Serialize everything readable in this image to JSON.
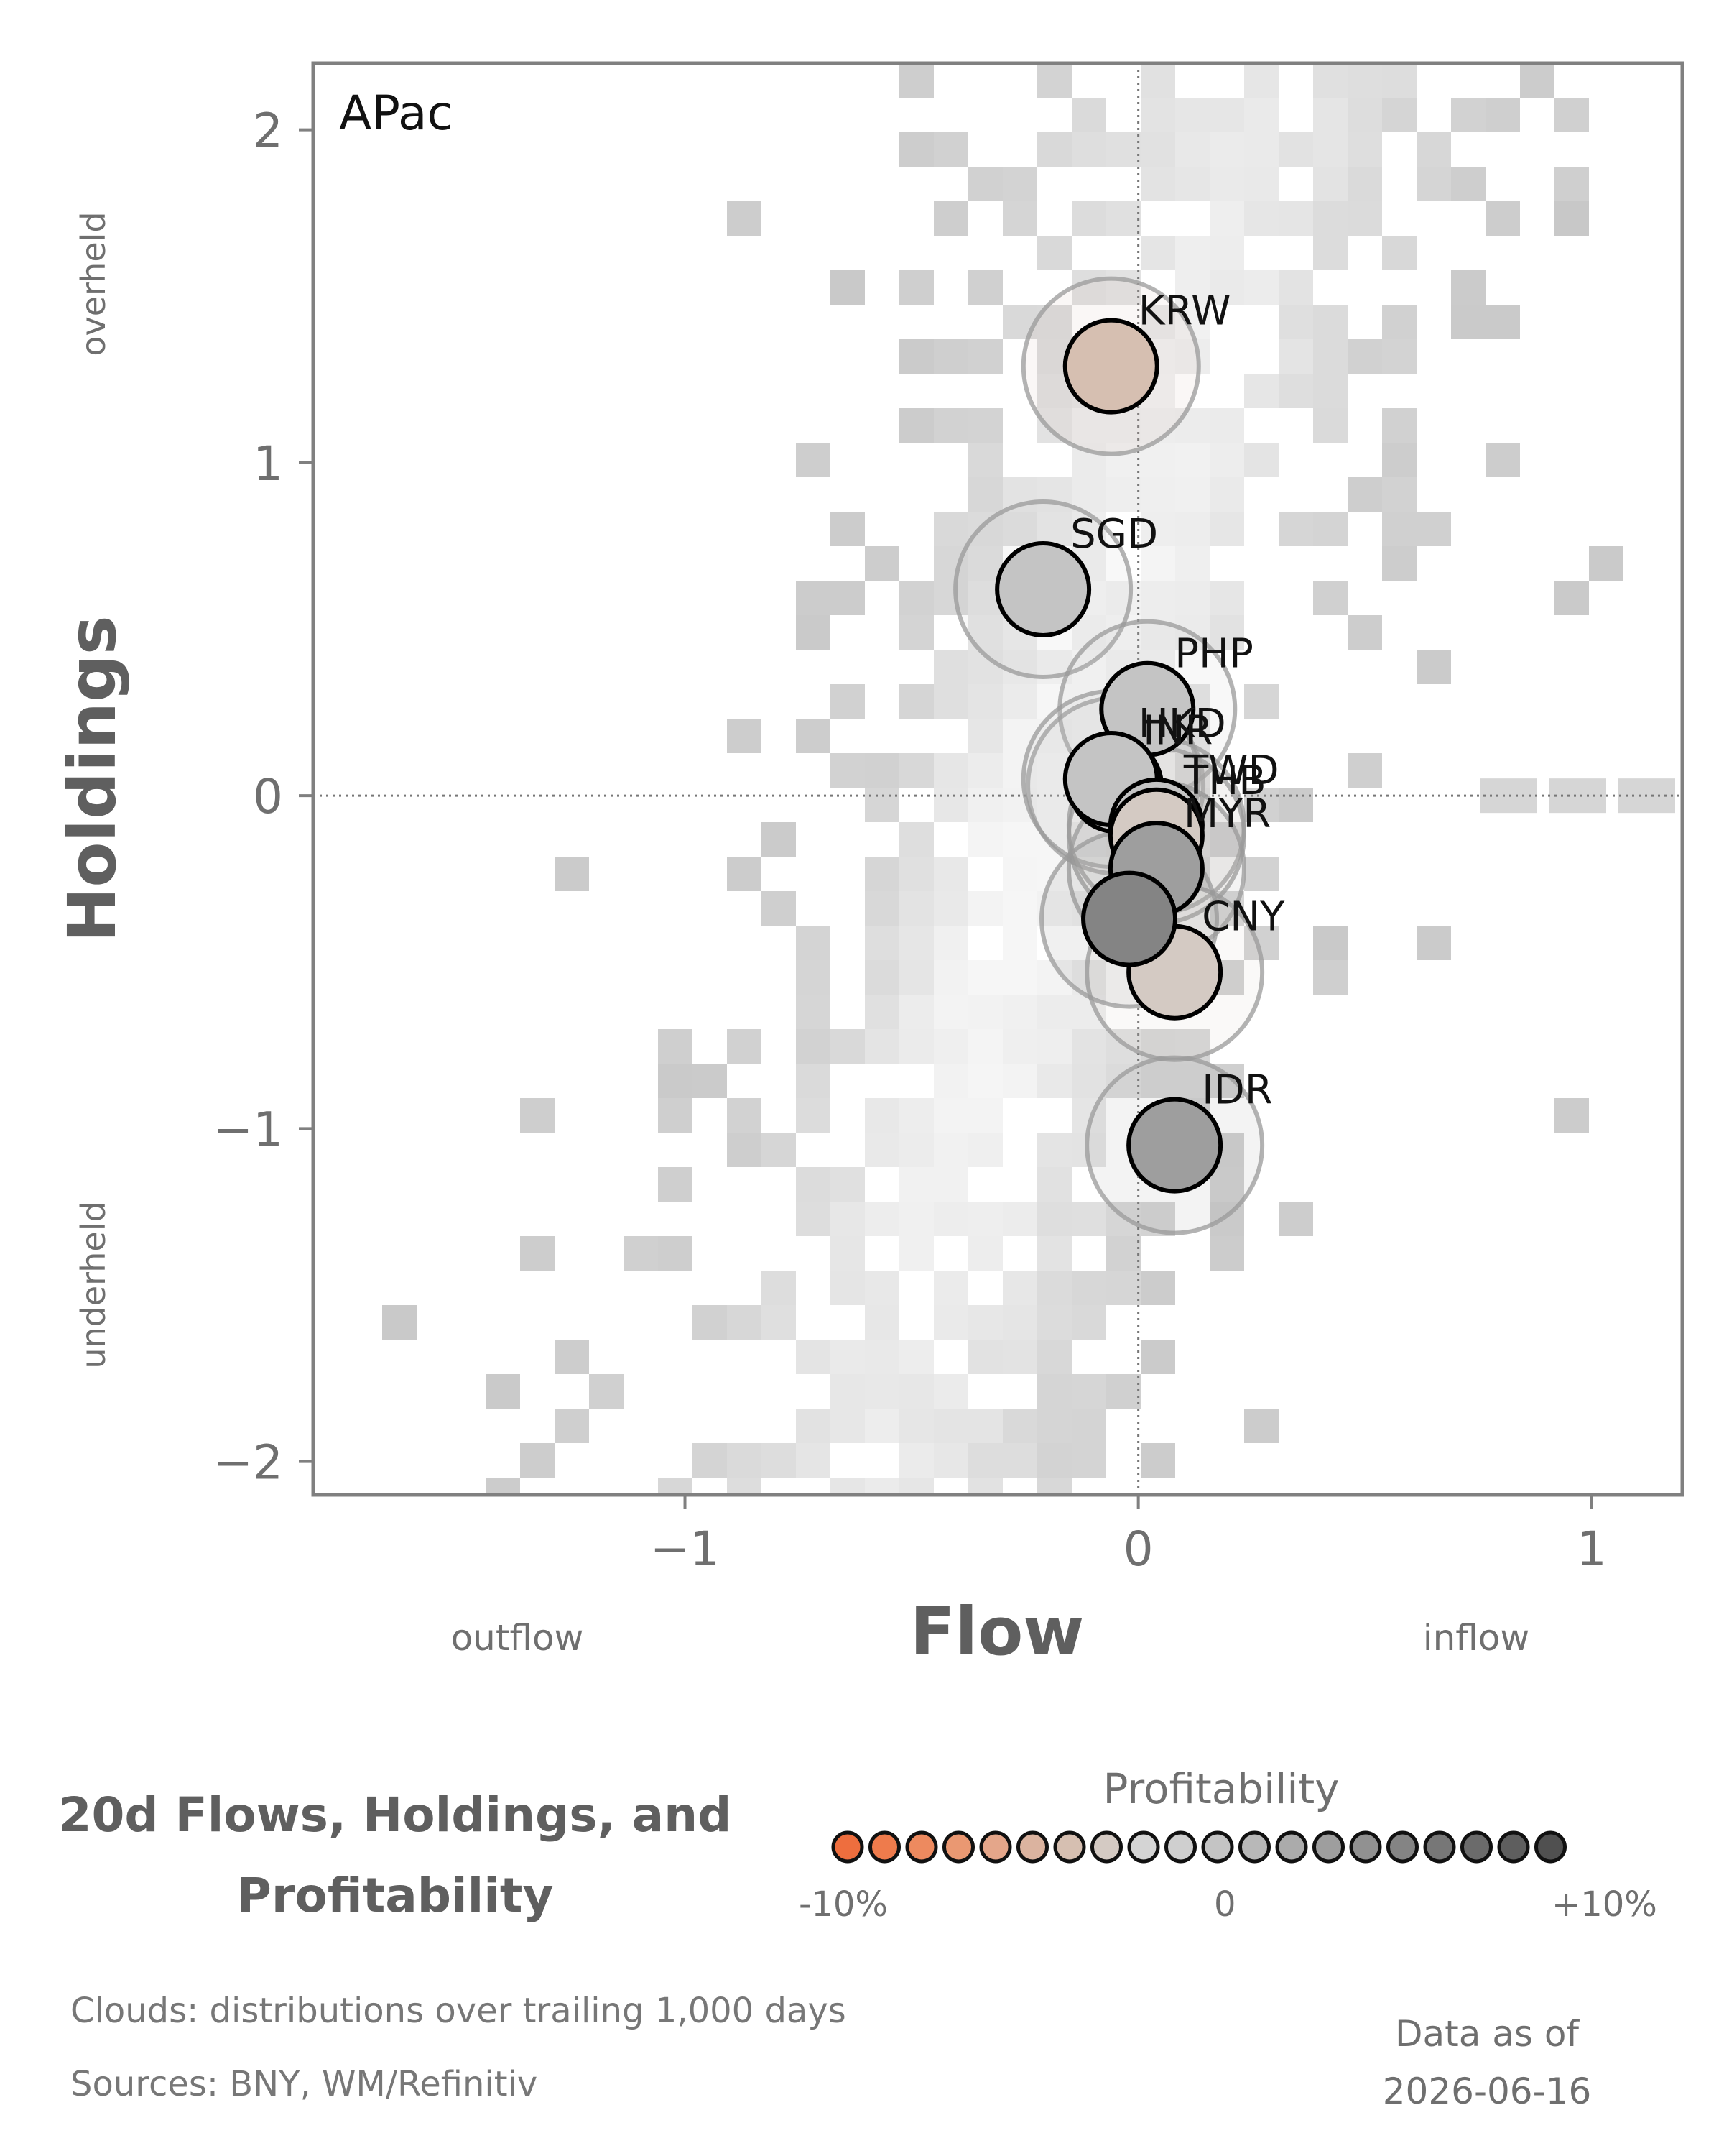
{
  "chart_data": {
    "type": "scatter",
    "panel_label": "APac",
    "xlabel": "Flow",
    "ylabel": "Holdings",
    "x_annotations": {
      "left": "outflow",
      "right": "inflow"
    },
    "y_annotations": {
      "top": "overheld",
      "bottom": "underheld"
    },
    "xlim": [
      -1.82,
      1.2
    ],
    "ylim": [
      -2.1,
      2.2
    ],
    "xticks": [
      -1,
      0,
      1
    ],
    "xtick_labels": [
      "−1",
      "0",
      "1"
    ],
    "yticks": [
      -2,
      -1,
      0,
      1,
      2
    ],
    "ytick_labels": [
      "−2",
      "−1",
      "0",
      "1",
      "2"
    ],
    "reference_lines": {
      "x": 0,
      "y": 0
    },
    "points": [
      {
        "label": "KRW",
        "x": -0.06,
        "y": 1.29,
        "profitability": -4
      },
      {
        "label": "SGD",
        "x": -0.21,
        "y": 0.62,
        "profitability": 1
      },
      {
        "label": "PHP",
        "x": 0.02,
        "y": 0.26,
        "profitability": 0
      },
      {
        "label": "INR",
        "x": -0.05,
        "y": 0.03,
        "profitability": 0
      },
      {
        "label": "HKD",
        "x": -0.06,
        "y": 0.05,
        "profitability": 0
      },
      {
        "label": "TWD",
        "x": 0.04,
        "y": -0.09,
        "profitability": 1
      },
      {
        "label": "THB",
        "x": 0.04,
        "y": -0.12,
        "profitability": -3
      },
      {
        "label": "MYR",
        "x": 0.04,
        "y": -0.22,
        "profitability": 4
      },
      {
        "label": "CNY",
        "x": 0.08,
        "y": -0.53,
        "profitability": -3
      },
      {
        "label": "IDR",
        "x": 0.08,
        "y": -1.05,
        "profitability": 4
      },
      {
        "label": "",
        "x": -0.02,
        "y": -0.37,
        "profitability": 6
      }
    ],
    "colorbar": {
      "title": "Profitability",
      "tick_labels": [
        "-10%",
        "0",
        "+10%"
      ],
      "range": [
        -10,
        10
      ],
      "colors": [
        "#ee6e3e",
        "#ee7b4c",
        "#ed8a5f",
        "#ea9872",
        "#e4a68a",
        "#dbb39f",
        "#d6bfb1",
        "#d4cac3",
        "#d4d4d4",
        "#cfcfcf",
        "#c4c4c4",
        "#b8b8b8",
        "#ababab",
        "#9e9e9e",
        "#919191",
        "#848484",
        "#777777",
        "#6b6b6b",
        "#5e5e5e",
        "#505050"
      ]
    }
  },
  "figure_title": "20d Flows, Holdings, and Profitability",
  "footer": {
    "clouds": "Clouds:  distributions over trailing 1,000 days",
    "sources": "Sources:  BNY, WM/Refinitiv"
  },
  "as_of": {
    "label": "Data as of",
    "date": "2026-06-16"
  }
}
